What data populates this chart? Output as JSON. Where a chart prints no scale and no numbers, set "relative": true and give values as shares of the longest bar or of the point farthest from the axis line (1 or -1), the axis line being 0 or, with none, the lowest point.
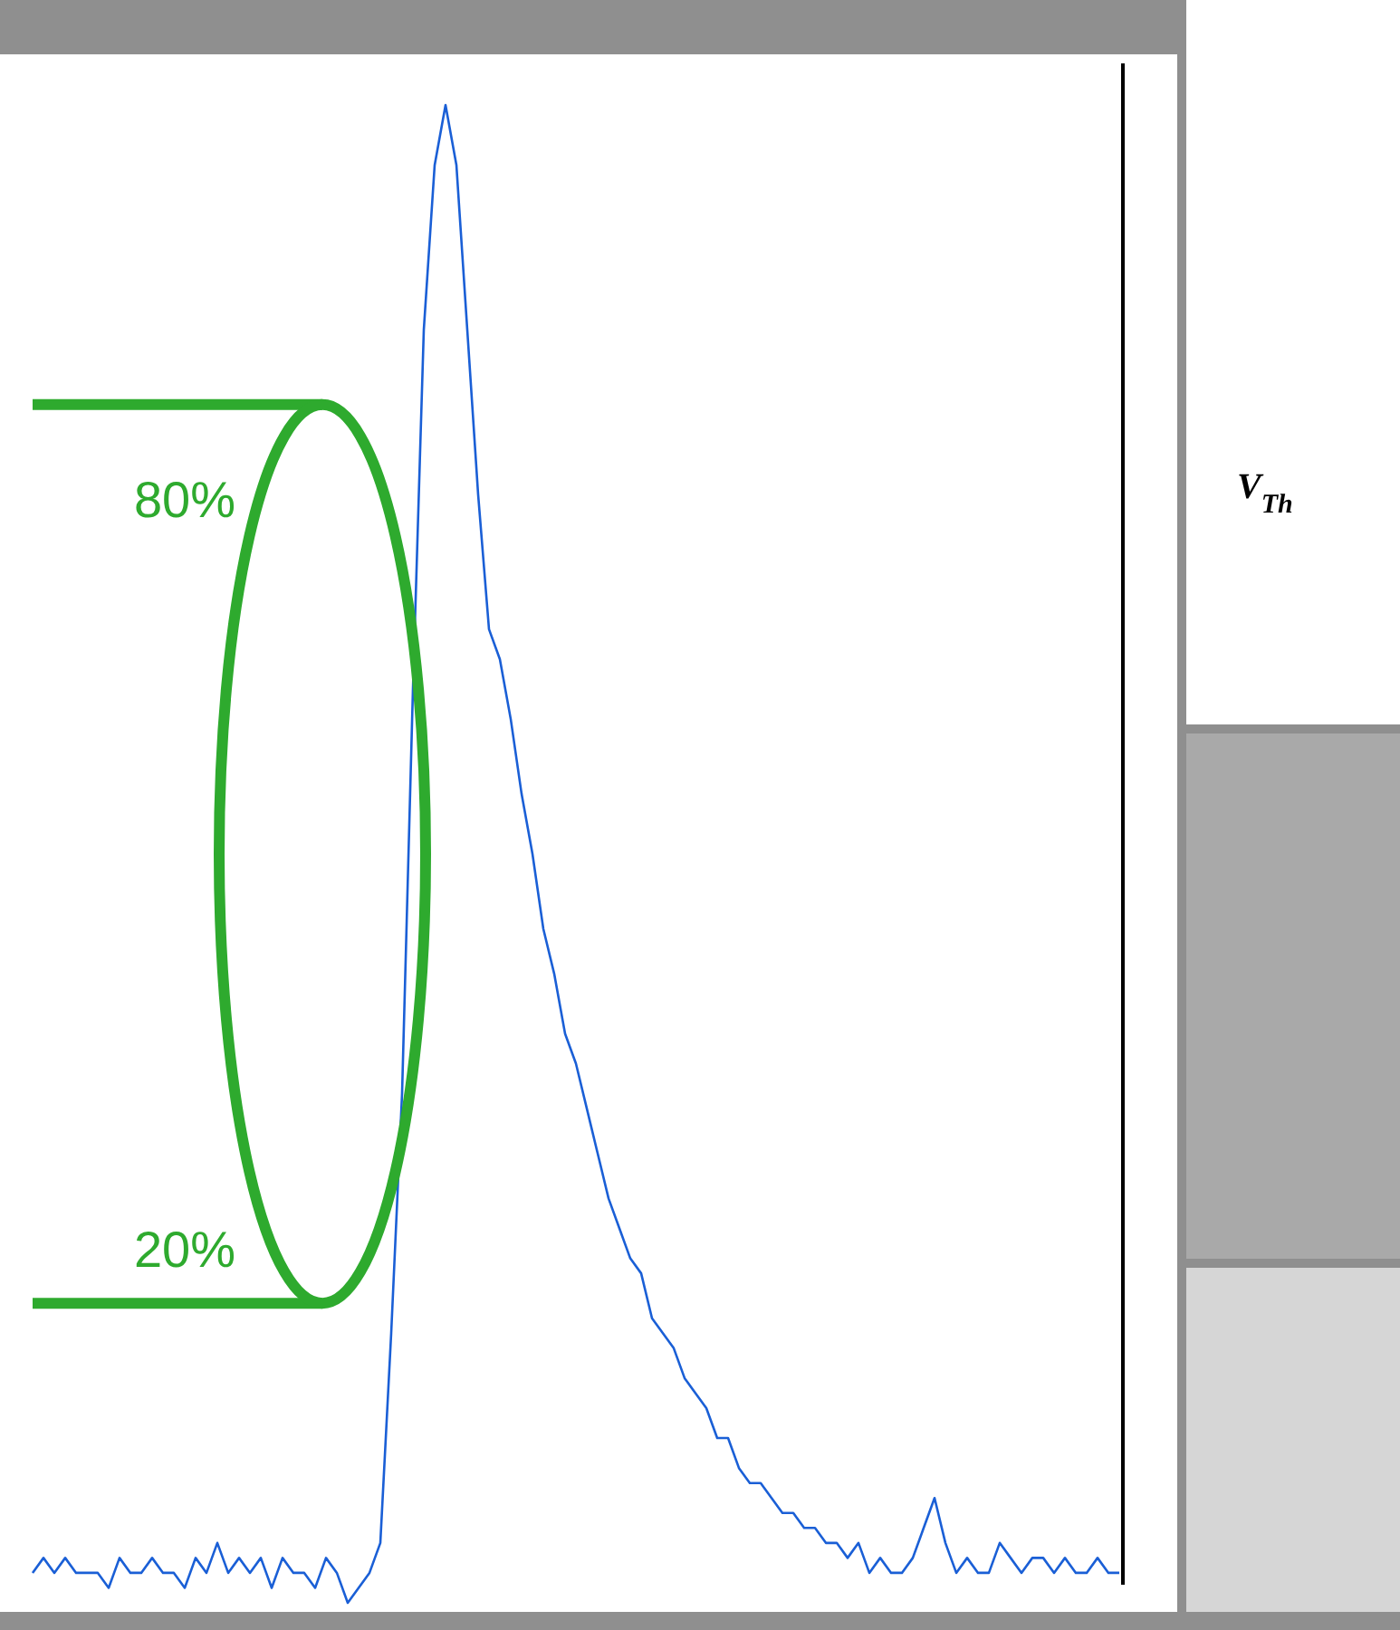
{
  "chart_data": {
    "type": "line",
    "relative": true,
    "categories": [
      null,
      null,
      null,
      null,
      null,
      null,
      null,
      null,
      null,
      null,
      null,
      null,
      null,
      null,
      null,
      null,
      null,
      null,
      null,
      null,
      null,
      null,
      null,
      null,
      null,
      null,
      null,
      null,
      null,
      null,
      null,
      null,
      null,
      null,
      null,
      null,
      null,
      null,
      null,
      null,
      null,
      null,
      null,
      null,
      null,
      null,
      null,
      null,
      null,
      null,
      null,
      null,
      null,
      null,
      null,
      null,
      null,
      null,
      null,
      null,
      null,
      null,
      null,
      null,
      null,
      null,
      null,
      null,
      null,
      null,
      null,
      null,
      null,
      null,
      null,
      null,
      null,
      null,
      null,
      null,
      null,
      null,
      null,
      null,
      null,
      null,
      null,
      null,
      null,
      null,
      null,
      null,
      null,
      null,
      null,
      null,
      null,
      null,
      null,
      null,
      null
    ],
    "series": [
      {
        "color": "#1a5fd6",
        "values": [
          0.02,
          0.03,
          0.02,
          0.03,
          0.02,
          0.02,
          0.02,
          0.01,
          0.03,
          0.02,
          0.02,
          0.03,
          0.02,
          0.02,
          0.01,
          0.03,
          0.02,
          0.04,
          0.02,
          0.03,
          0.02,
          0.03,
          0.01,
          0.03,
          0.02,
          0.02,
          0.01,
          0.03,
          0.02,
          0,
          0.01,
          0.02,
          0.04,
          0.18,
          0.34,
          0.61,
          0.85,
          0.96,
          1,
          0.96,
          0.85,
          0.74,
          0.65,
          0.63,
          0.59,
          0.54,
          0.5,
          0.45,
          0.42,
          0.38,
          0.36,
          0.33,
          0.3,
          0.27,
          0.25,
          0.23,
          0.22,
          0.19,
          0.18,
          0.17,
          0.15,
          0.14,
          0.13,
          0.11,
          0.11,
          0.09,
          0.08,
          0.08,
          0.07,
          0.06,
          0.06,
          0.05,
          0.05,
          0.04,
          0.04,
          0.03,
          0.04,
          0.02,
          0.03,
          0.02,
          0.02,
          0.03,
          0.05,
          0.07,
          0.04,
          0.02,
          0.03,
          0.02,
          0.02,
          0.04,
          0.03,
          0.02,
          0.03,
          0.03,
          0.02,
          0.03,
          0.02,
          0.02,
          0.03,
          0.02,
          0.02
        ]
      }
    ],
    "ref_lines": [
      {
        "axis": "y",
        "value": 0.8,
        "label": "80%",
        "color": "#2eaa2e"
      },
      {
        "axis": "y",
        "value": 0.2,
        "label": "20%",
        "color": "#2eaa2e"
      }
    ],
    "annotations": [
      "V$_{Th}$"
    ]
  }
}
